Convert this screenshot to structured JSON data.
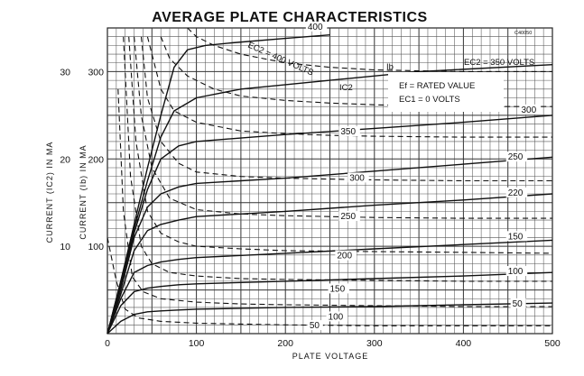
{
  "chart_data": {
    "type": "line",
    "title": "AVERAGE PLATE CHARACTERISTICS",
    "xlabel": "PLATE VOLTAGE",
    "ylabel_plate": "CURRENT (Ib) IN MA",
    "ylabel_screen": "CURRENT (IC2) IN MA",
    "xlim": [
      0,
      500
    ],
    "ylim_plate": [
      0,
      350
    ],
    "ylim_screen": [
      0,
      35
    ],
    "x_ticks": [
      "0",
      "100",
      "200",
      "300",
      "400",
      "500"
    ],
    "y_ticks_plate": [
      "100",
      "200",
      "300"
    ],
    "y_ticks_screen": [
      "10",
      "20",
      "30"
    ],
    "grid": true,
    "figure_number": "C40050",
    "conditions": [
      "Ef = RATED VALUE",
      "EC1 = 0 VOLTS"
    ],
    "annotations": [
      "EC2 = 400 VOLTS",
      "EC2 = 350 VOLTS",
      "Ib",
      "IC2"
    ],
    "series": [
      {
        "name": "400",
        "kind": "plate",
        "label": "400",
        "label_xy": [
          225,
          345
        ],
        "x": [
          0,
          15,
          30,
          45,
          60,
          75,
          90,
          110,
          140,
          200,
          250
        ],
        "y": [
          0,
          60,
          125,
          190,
          250,
          305,
          325,
          330,
          333,
          338,
          342
        ]
      },
      {
        "name": "350",
        "kind": "plate",
        "label": "Ib",
        "label_xy": [
          315,
          298
        ],
        "x": [
          0,
          15,
          30,
          45,
          60,
          75,
          100,
          150,
          250,
          350,
          500
        ],
        "y": [
          0,
          60,
          120,
          175,
          225,
          255,
          270,
          280,
          290,
          300,
          308
        ]
      },
      {
        "name": "300",
        "kind": "plate",
        "label": "300",
        "label_xy": [
          465,
          250
        ],
        "x": [
          0,
          15,
          30,
          45,
          60,
          80,
          100,
          200,
          300,
          400,
          500
        ],
        "y": [
          0,
          55,
          115,
          165,
          200,
          215,
          220,
          228,
          235,
          242,
          250
        ]
      },
      {
        "name": "250",
        "kind": "plate",
        "label": "250",
        "label_xy": [
          450,
          196
        ],
        "x": [
          0,
          15,
          30,
          45,
          60,
          80,
          100,
          200,
          300,
          400,
          500
        ],
        "y": [
          0,
          50,
          110,
          145,
          160,
          168,
          172,
          178,
          186,
          194,
          202
        ]
      },
      {
        "name": "220",
        "kind": "plate",
        "label": "220",
        "label_xy": [
          450,
          155
        ],
        "x": [
          0,
          15,
          30,
          45,
          60,
          80,
          100,
          200,
          300,
          400,
          500
        ],
        "y": [
          0,
          45,
          95,
          118,
          125,
          130,
          134,
          140,
          147,
          153,
          160
        ]
      },
      {
        "name": "150",
        "kind": "plate",
        "label": "150",
        "label_xy": [
          450,
          105
        ],
        "x": [
          0,
          15,
          30,
          45,
          60,
          80,
          100,
          200,
          300,
          400,
          500
        ],
        "y": [
          0,
          40,
          70,
          78,
          82,
          85,
          87,
          92,
          97,
          102,
          107
        ]
      },
      {
        "name": "100",
        "kind": "plate",
        "label": "100",
        "label_xy": [
          450,
          65
        ],
        "x": [
          0,
          15,
          30,
          45,
          60,
          80,
          100,
          200,
          300,
          400,
          500
        ],
        "y": [
          0,
          32,
          48,
          52,
          54,
          56,
          57,
          60,
          63,
          66,
          70
        ]
      },
      {
        "name": "50",
        "kind": "plate",
        "label": "50",
        "label_xy": [
          455,
          28
        ],
        "x": [
          0,
          15,
          30,
          45,
          60,
          80,
          100,
          200,
          300,
          400,
          500
        ],
        "y": [
          0,
          14,
          22,
          25,
          26,
          27,
          28,
          30,
          31,
          33,
          35
        ]
      },
      {
        "name": "IC2 @ 400",
        "kind": "screen",
        "label": "EC2=400 VOLTS",
        "label_xy": [
          155,
          305
        ],
        "x": [
          90,
          100,
          120,
          150,
          200,
          250,
          300,
          350,
          400,
          450,
          500
        ],
        "y": [
          35,
          34,
          33,
          32,
          31,
          30.5,
          30.2,
          30.1,
          30,
          30,
          30
        ]
      },
      {
        "name": "IC2 @ 350",
        "kind": "screen",
        "label": "IC2",
        "label_xy": [
          262,
          278
        ],
        "x": [
          60,
          70,
          90,
          120,
          150,
          200,
          250,
          300,
          400,
          500
        ],
        "y": [
          34,
          31.5,
          29.5,
          28,
          27.2,
          26.7,
          26.4,
          26.2,
          26,
          26
        ]
      },
      {
        "name": "IC2 @ 350 label",
        "kind": "screen",
        "label": "350",
        "label_xy": [
          262,
          225
        ],
        "x": [
          45,
          60,
          75,
          100,
          150,
          200,
          250,
          300,
          400,
          500
        ],
        "y": [
          34,
          28,
          25.5,
          24.2,
          23.2,
          22.9,
          22.7,
          22.6,
          22.5,
          22.5
        ]
      },
      {
        "name": "IC2 @ 300",
        "kind": "screen",
        "label": "300",
        "label_xy": [
          272,
          172
        ],
        "x": [
          38,
          45,
          60,
          80,
          100,
          150,
          200,
          250,
          300,
          400,
          500
        ],
        "y": [
          34,
          27,
          22,
          19.5,
          18.5,
          18,
          17.8,
          17.7,
          17.6,
          17.5,
          17.5
        ]
      },
      {
        "name": "IC2 @ 250",
        "kind": "screen",
        "label": "250",
        "label_xy": [
          262,
          128
        ],
        "x": [
          30,
          38,
          50,
          70,
          100,
          150,
          200,
          250,
          300,
          400,
          500
        ],
        "y": [
          34,
          25,
          19,
          15.5,
          14.2,
          13.7,
          13.5,
          13.4,
          13.3,
          13.2,
          13.2
        ]
      },
      {
        "name": "IC2 @ 200",
        "kind": "screen",
        "label": "200",
        "label_xy": [
          258,
          83
        ],
        "x": [
          24,
          32,
          45,
          60,
          80,
          100,
          150,
          200,
          300,
          400,
          500
        ],
        "y": [
          34,
          22,
          14,
          11.5,
          10.5,
          10,
          9.7,
          9.5,
          9.4,
          9.3,
          9.2
        ]
      },
      {
        "name": "IC2 @ 150",
        "kind": "screen",
        "label": "150",
        "label_xy": [
          250,
          45
        ],
        "x": [
          18,
          26,
          38,
          50,
          70,
          100,
          150,
          200,
          300,
          400,
          500
        ],
        "y": [
          34,
          18,
          10,
          8,
          7,
          6.6,
          6.3,
          6.2,
          6.1,
          6.0,
          6.0
        ]
      },
      {
        "name": "IC2 @ 100",
        "kind": "screen",
        "label": "100",
        "label_xy": [
          248,
          13
        ],
        "x": [
          12,
          18,
          28,
          40,
          60,
          100,
          150,
          200,
          300,
          400,
          500
        ],
        "y": [
          28,
          14,
          6.5,
          4.8,
          4.0,
          3.6,
          3.4,
          3.3,
          3.2,
          3.1,
          3.1
        ]
      },
      {
        "name": "IC2 @ 50",
        "kind": "screen",
        "label": "50",
        "label_xy": [
          227,
          3
        ],
        "x": [
          0,
          10,
          20,
          35,
          60,
          100,
          200,
          300,
          400,
          500
        ],
        "y": [
          11,
          6,
          2.8,
          1.8,
          1.4,
          1.2,
          1.0,
          0.9,
          0.9,
          0.9
        ]
      }
    ]
  }
}
